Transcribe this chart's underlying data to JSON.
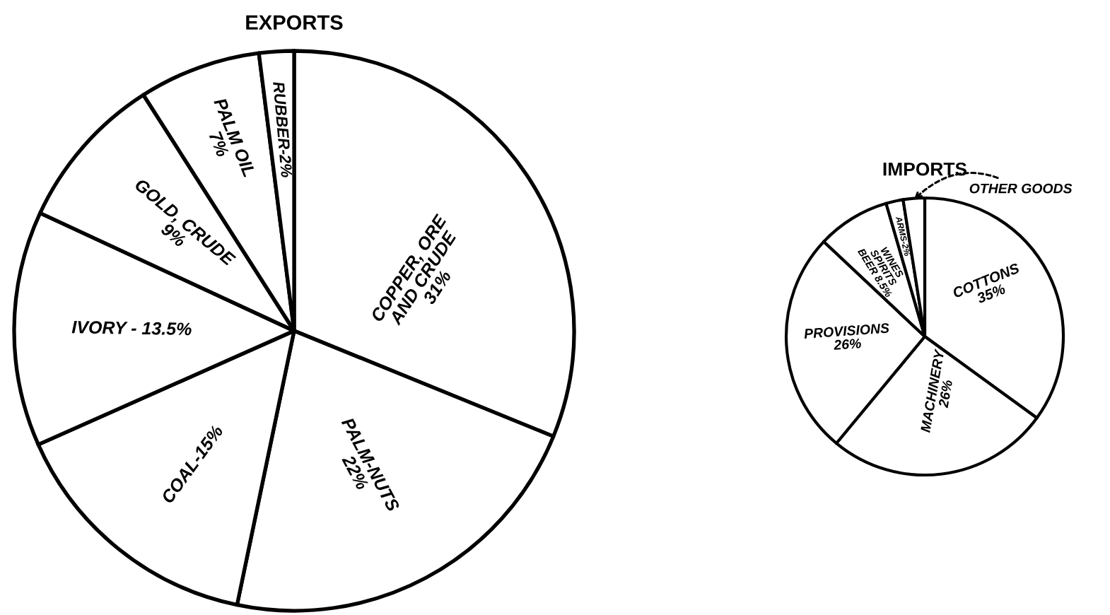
{
  "chart_data": [
    {
      "type": "pie",
      "title": "EXPORTS",
      "categories": [
        "COPPER, ORE\nAND CRUDE",
        "PALM-NUTS",
        "COAL",
        "IVORY",
        "GOLD, CRUDE",
        "PALM OIL",
        "RUBBER"
      ],
      "values": [
        31,
        22,
        15,
        13.5,
        9,
        7,
        2
      ],
      "value_labels": [
        "31%",
        "22%",
        "15%",
        "13.5%",
        "9%",
        "7%",
        "2%"
      ],
      "colors": [
        "#ffffff",
        "#ffffff",
        "#ffffff",
        "#ffffff",
        "#ffffff",
        "#ffffff",
        "#ffffff"
      ]
    },
    {
      "type": "pie",
      "title": "IMPORTS",
      "categories": [
        "COTTONS",
        "MACHINERY",
        "PROVISIONS",
        "WINES\nSPIRITS\nBEER",
        "ARMS",
        "OTHER GOODS"
      ],
      "values": [
        35,
        26,
        26,
        8.5,
        2,
        2.5
      ],
      "value_labels": [
        "35%",
        "26%",
        "26%",
        "8.5%",
        "2%",
        null
      ],
      "colors": [
        "#ffffff",
        "#ffffff",
        "#ffffff",
        "#ffffff",
        "#ffffff",
        "#ffffff"
      ]
    }
  ]
}
